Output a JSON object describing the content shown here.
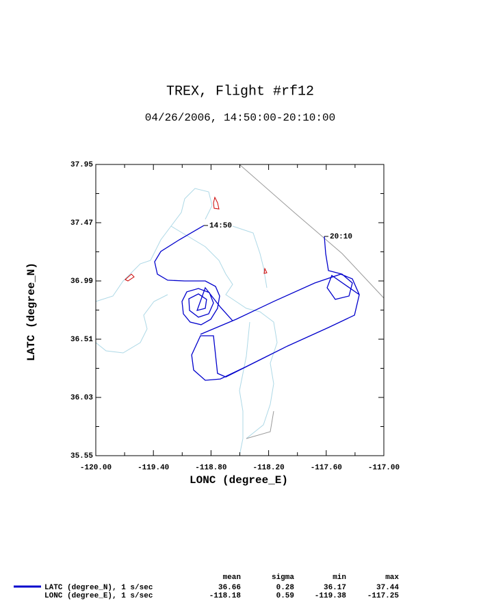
{
  "chart_data": {
    "type": "line",
    "title": "TREX, Flight #rf12",
    "subtitle": "04/26/2006, 14:50:00-20:10:00",
    "xlabel": "LONC (degree_E)",
    "ylabel": "LATC (degree_N)",
    "xlim": [
      -120.0,
      -117.0
    ],
    "ylim": [
      35.55,
      37.95
    ],
    "xticks": [
      {
        "value": -120.0,
        "label": "-120.00"
      },
      {
        "value": -119.4,
        "label": "-119.40"
      },
      {
        "value": -118.8,
        "label": "-118.80"
      },
      {
        "value": -118.2,
        "label": "-118.20"
      },
      {
        "value": -117.6,
        "label": "-117.60"
      },
      {
        "value": -117.0,
        "label": "-117.00"
      }
    ],
    "xminorticks": [
      -119.7,
      -119.1,
      -118.5,
      -117.9,
      -117.3
    ],
    "yticks": [
      37.95,
      37.47,
      36.99,
      36.51,
      36.03,
      35.55
    ],
    "yminorticks": [
      37.71,
      37.23,
      36.75,
      36.27,
      35.79
    ],
    "x": [
      -118.874,
      -119.131,
      -119.323,
      -119.387,
      -119.359,
      -119.252,
      -119.074,
      -118.86,
      -118.753,
      -118.71,
      -118.732,
      -118.803,
      -118.903,
      -119.017,
      -119.088,
      -119.102,
      -119.052,
      -118.931,
      -118.817,
      -118.774,
      -118.824,
      -118.931,
      -119.024,
      -119.031,
      -118.931,
      -118.846,
      -118.86,
      -118.945,
      -118.86,
      -118.703,
      -118.575,
      -118.91,
      -118.539,
      -118.147,
      -117.72,
      -117.449,
      -117.328,
      -117.256,
      -117.306,
      -117.577,
      -118.005,
      -118.432,
      -118.703,
      -118.86,
      -118.981,
      -119.002,
      -118.91,
      -118.774,
      -118.732,
      -118.646,
      -118.005,
      -117.577,
      -117.306,
      -117.256,
      -117.542,
      -117.591,
      -117.506,
      -117.363,
      -117.328,
      -117.435,
      -117.577,
      -117.606,
      -117.62
    ],
    "series": [
      {
        "name": "LATC (degree_N), 1 s/sec",
        "color": "#0000cc",
        "values": [
          37.447,
          37.329,
          37.233,
          37.148,
          37.046,
          36.996,
          36.99,
          36.99,
          36.945,
          36.866,
          36.764,
          36.674,
          36.629,
          36.651,
          36.719,
          36.821,
          36.9,
          36.928,
          36.894,
          36.809,
          36.719,
          36.691,
          36.747,
          36.843,
          36.883,
          36.838,
          36.764,
          36.747,
          36.934,
          36.775,
          36.662,
          36.55,
          36.674,
          36.821,
          36.973,
          37.046,
          37.007,
          36.877,
          36.708,
          36.606,
          36.453,
          36.284,
          36.182,
          36.171,
          36.256,
          36.38,
          36.538,
          36.538,
          36.228,
          36.199,
          36.453,
          36.606,
          36.708,
          36.877,
          37.035,
          36.934,
          36.838,
          36.866,
          36.973,
          37.046,
          37.075,
          37.216,
          37.357
        ]
      }
    ],
    "annotations": [
      "14:50",
      "20:10"
    ],
    "stats": {
      "columns": [
        "mean",
        "sigma",
        "min",
        "max"
      ],
      "rows": [
        {
          "name": "LATC (degree_N), 1 s/sec",
          "values": [
            36.66,
            0.28,
            36.17,
            37.44
          ]
        },
        {
          "name": "LONC (degree_E), 1 s/sec",
          "values": [
            -118.18,
            0.59,
            -119.38,
            -117.25
          ]
        }
      ]
    }
  }
}
